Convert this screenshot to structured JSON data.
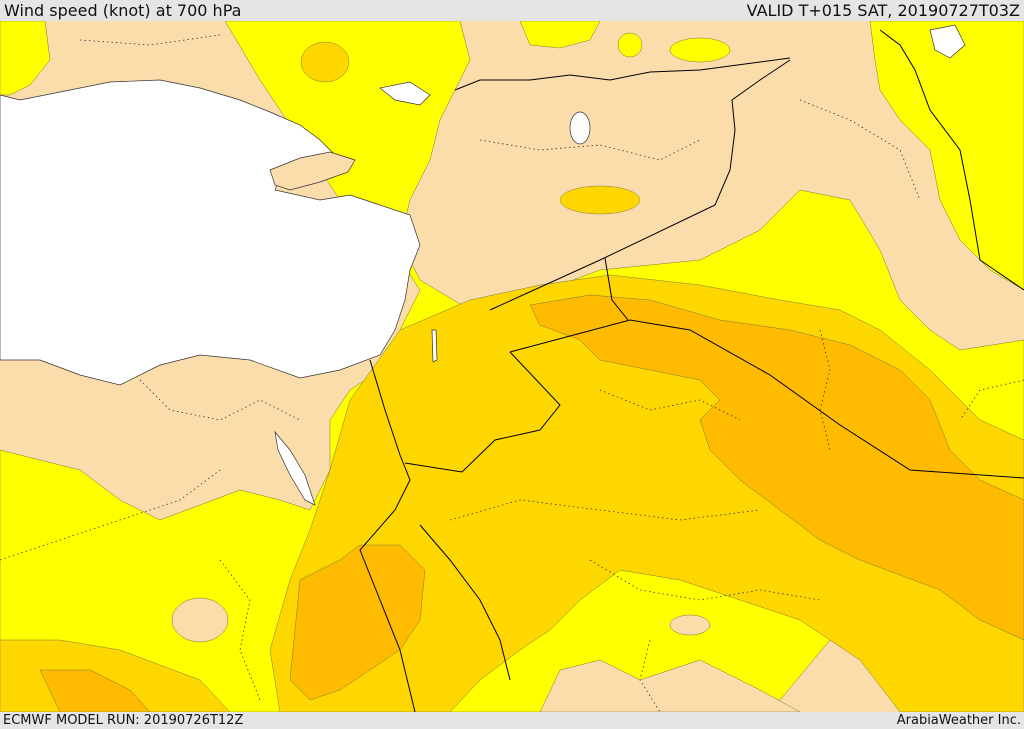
{
  "header": {
    "title": "Wind speed (knot) at 700 hPa",
    "valid": "VALID T+015 SAT, 20190727T03Z"
  },
  "footer": {
    "model_run": "ECMWF MODEL RUN: 20190726T12Z",
    "credit": "ArabiaWeather Inc."
  },
  "palette": {
    "land_calm": "#fbdcab",
    "wind_low": "#ffff00",
    "wind_mid": "#ffd700",
    "wind_high": "#ffbb00",
    "sea": "#ffffff",
    "border": "#000000"
  }
}
